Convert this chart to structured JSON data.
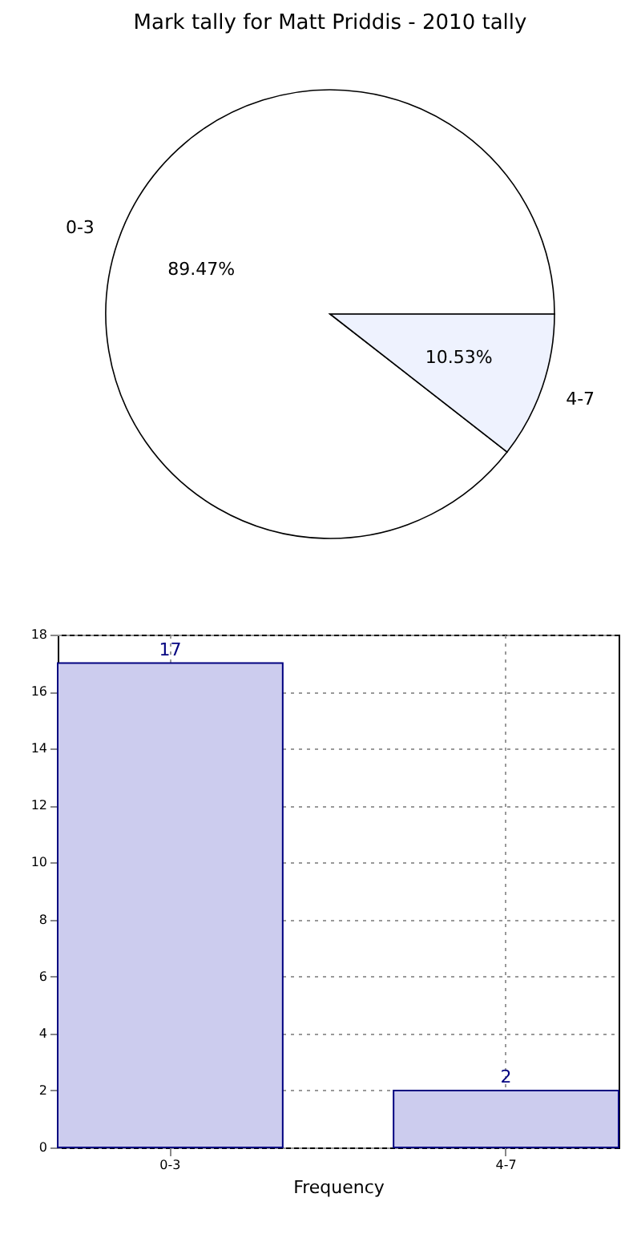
{
  "chart_data": [
    {
      "type": "pie",
      "title": "Mark tally for Matt Priddis - 2010 tally",
      "categories": [
        "0-3",
        "4-7"
      ],
      "values": [
        89.47,
        10.53
      ],
      "colors": [
        "#ffffff",
        "#eef2fe"
      ],
      "value_labels": [
        "89.47%",
        "10.53%"
      ]
    },
    {
      "type": "bar",
      "xlabel": "Frequency",
      "categories": [
        "0-3",
        "4-7"
      ],
      "values": [
        17,
        2
      ],
      "color": "#ccccee",
      "ylim": [
        0,
        18
      ],
      "yticks": [
        0,
        2,
        4,
        6,
        8,
        10,
        12,
        14,
        16,
        18
      ],
      "grid": true,
      "data_labels": true
    }
  ]
}
